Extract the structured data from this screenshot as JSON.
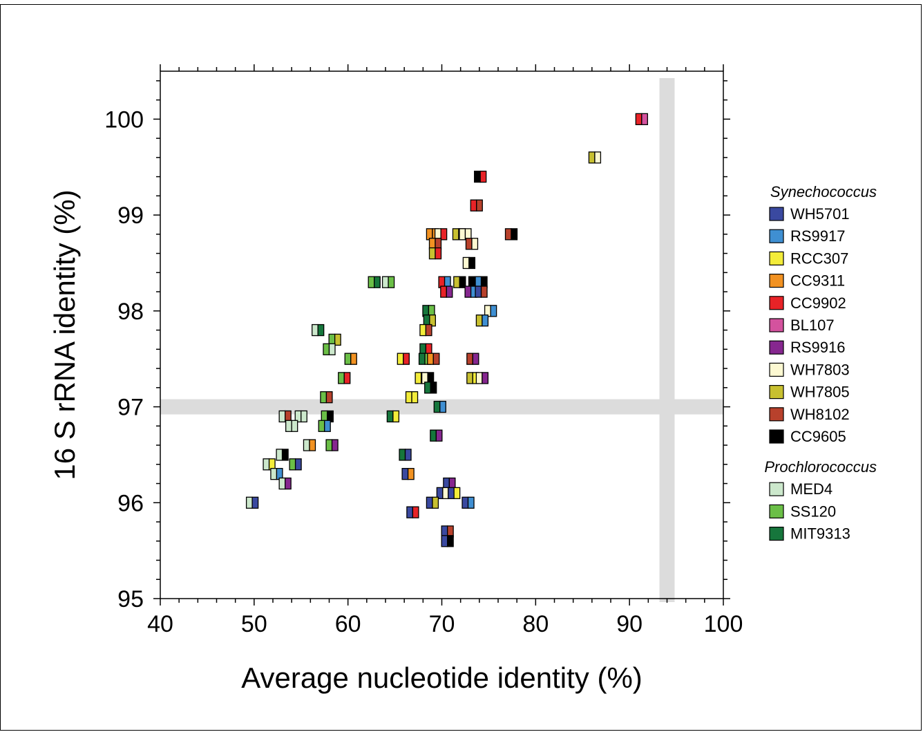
{
  "chart_data": {
    "type": "scatter",
    "xlabel": "Average nucleotide identity (%)",
    "ylabel": "16 S rRNA identity (%)",
    "xlim": [
      40,
      100
    ],
    "ylim": [
      95,
      100.5
    ],
    "xticks": [
      40,
      50,
      60,
      70,
      80,
      90,
      100
    ],
    "yticks": [
      95,
      96,
      97,
      98,
      99,
      100
    ],
    "threshold_bands": {
      "x": 94,
      "y": 97
    },
    "grid": false,
    "legend_placement": "right",
    "legend_groups": [
      {
        "title": "Synechococcus",
        "entries": [
          {
            "key": "WH5701",
            "label": "WH5701",
            "color": "#3a49a0"
          },
          {
            "key": "RS9917",
            "label": "RS9917",
            "color": "#3f8fd2"
          },
          {
            "key": "RCC307",
            "label": "RCC307",
            "color": "#f3ec3a"
          },
          {
            "key": "CC9311",
            "label": "CC9311",
            "color": "#f29222"
          },
          {
            "key": "CC9902",
            "label": "CC9902",
            "color": "#e82327"
          },
          {
            "key": "BL107",
            "label": "BL107",
            "color": "#d4529e"
          },
          {
            "key": "RS9916",
            "label": "RS9916",
            "color": "#86278f"
          },
          {
            "key": "WH7803",
            "label": "WH7803",
            "color": "#fdf9d2"
          },
          {
            "key": "WH7805",
            "label": "WH7805",
            "color": "#c8c030"
          },
          {
            "key": "WH8102",
            "label": "WH8102",
            "color": "#b8412c"
          },
          {
            "key": "CC9605",
            "label": "CC9605",
            "color": "#000000"
          }
        ]
      },
      {
        "title": "Prochlorococcus",
        "entries": [
          {
            "key": "MED4",
            "label": "MED4",
            "color": "#cce8cc"
          },
          {
            "key": "SS120",
            "label": "SS120",
            "color": "#6bbf47"
          },
          {
            "key": "MIT9313",
            "label": "MIT9313",
            "color": "#16763c"
          }
        ]
      }
    ],
    "points": [
      {
        "x": 91.3,
        "y": 100.0,
        "pair": [
          "CC9902",
          "BL107"
        ]
      },
      {
        "x": 86.3,
        "y": 99.6,
        "pair": [
          "WH7805",
          "WH7803"
        ]
      },
      {
        "x": 74.1,
        "y": 99.4,
        "pair": [
          "CC9605",
          "CC9902"
        ]
      },
      {
        "x": 73.7,
        "y": 99.1,
        "pair": [
          "CC9902",
          "WH8102"
        ]
      },
      {
        "x": 77.4,
        "y": 98.8,
        "pair": [
          "WH8102",
          "CC9605"
        ]
      },
      {
        "x": 69.0,
        "y": 98.8,
        "pair": [
          "CC9311",
          "CC9311"
        ]
      },
      {
        "x": 69.9,
        "y": 98.8,
        "pair": [
          "WH7803",
          "CC9902"
        ]
      },
      {
        "x": 71.8,
        "y": 98.8,
        "pair": [
          "WH7805",
          "CC9311"
        ]
      },
      {
        "x": 72.5,
        "y": 98.8,
        "pair": [
          "WH7803",
          "WH7803"
        ]
      },
      {
        "x": 69.3,
        "y": 98.7,
        "pair": [
          "CC9311",
          "WH8102"
        ]
      },
      {
        "x": 73.2,
        "y": 98.7,
        "pair": [
          "WH8102",
          "WH7803"
        ]
      },
      {
        "x": 69.3,
        "y": 98.6,
        "pair": [
          "WH7805",
          "CC9902"
        ]
      },
      {
        "x": 72.9,
        "y": 98.5,
        "pair": [
          "WH7803",
          "CC9605"
        ]
      },
      {
        "x": 62.8,
        "y": 98.3,
        "pair": [
          "SS120",
          "MIT9313"
        ]
      },
      {
        "x": 64.3,
        "y": 98.3,
        "pair": [
          "MED4",
          "SS120"
        ]
      },
      {
        "x": 70.3,
        "y": 98.3,
        "pair": [
          "CC9902",
          "RS9917"
        ]
      },
      {
        "x": 71.9,
        "y": 98.3,
        "pair": [
          "WH7805",
          "CC9605"
        ]
      },
      {
        "x": 73.5,
        "y": 98.3,
        "pair": [
          "CC9605",
          "WH5701"
        ]
      },
      {
        "x": 74.2,
        "y": 98.3,
        "pair": [
          "RS9917",
          "CC9605"
        ]
      },
      {
        "x": 70.5,
        "y": 98.2,
        "pair": [
          "CC9902",
          "RS9916"
        ]
      },
      {
        "x": 73.1,
        "y": 98.2,
        "pair": [
          "RS9916",
          "RS9917"
        ]
      },
      {
        "x": 74.2,
        "y": 98.2,
        "pair": [
          "WH5701",
          "WH8102"
        ]
      },
      {
        "x": 75.2,
        "y": 98.0,
        "pair": [
          "WH7803",
          "RS9917"
        ]
      },
      {
        "x": 68.6,
        "y": 98.0,
        "pair": [
          "MIT9313",
          "SS120"
        ]
      },
      {
        "x": 56.8,
        "y": 97.8,
        "pair": [
          "MED4",
          "MIT9313"
        ]
      },
      {
        "x": 74.3,
        "y": 97.9,
        "pair": [
          "WH7805",
          "RS9917"
        ]
      },
      {
        "x": 68.7,
        "y": 97.9,
        "pair": [
          "MIT9313",
          "WH7805"
        ]
      },
      {
        "x": 68.3,
        "y": 97.8,
        "pair": [
          "RCC307",
          "WH8102"
        ]
      },
      {
        "x": 58.6,
        "y": 97.7,
        "pair": [
          "SS120",
          "WH7805"
        ]
      },
      {
        "x": 58.0,
        "y": 97.6,
        "pair": [
          "SS120",
          "MED4"
        ]
      },
      {
        "x": 68.3,
        "y": 97.6,
        "pair": [
          "MIT9313",
          "CC9902"
        ]
      },
      {
        "x": 60.3,
        "y": 97.5,
        "pair": [
          "SS120",
          "CC9311"
        ]
      },
      {
        "x": 65.9,
        "y": 97.5,
        "pair": [
          "RCC307",
          "CC9902"
        ]
      },
      {
        "x": 68.2,
        "y": 97.5,
        "pair": [
          "MIT9313",
          "SS120"
        ]
      },
      {
        "x": 69.1,
        "y": 97.5,
        "pair": [
          "CC9311",
          "WH8102"
        ]
      },
      {
        "x": 73.3,
        "y": 97.5,
        "pair": [
          "WH8102",
          "RS9916"
        ]
      },
      {
        "x": 59.6,
        "y": 97.3,
        "pair": [
          "SS120",
          "CC9902"
        ]
      },
      {
        "x": 67.8,
        "y": 97.3,
        "pair": [
          "RCC307",
          "WH7803"
        ]
      },
      {
        "x": 68.5,
        "y": 97.3,
        "pair": [
          "WH7803",
          "CC9605"
        ]
      },
      {
        "x": 73.3,
        "y": 97.3,
        "pair": [
          "WH7805",
          "RCC307"
        ]
      },
      {
        "x": 74.3,
        "y": 97.3,
        "pair": [
          "WH7803",
          "RS9916"
        ]
      },
      {
        "x": 68.8,
        "y": 97.2,
        "pair": [
          "MIT9313",
          "CC9605"
        ]
      },
      {
        "x": 57.7,
        "y": 97.1,
        "pair": [
          "SS120",
          "WH8102"
        ]
      },
      {
        "x": 66.8,
        "y": 97.1,
        "pair": [
          "RCC307",
          "RCC307"
        ]
      },
      {
        "x": 69.8,
        "y": 97.0,
        "pair": [
          "MIT9313",
          "RS9917"
        ]
      },
      {
        "x": 53.3,
        "y": 96.9,
        "pair": [
          "MED4",
          "WH8102"
        ]
      },
      {
        "x": 55.0,
        "y": 96.9,
        "pair": [
          "MED4",
          "MED4"
        ]
      },
      {
        "x": 57.8,
        "y": 96.9,
        "pair": [
          "SS120",
          "CC9605"
        ]
      },
      {
        "x": 64.8,
        "y": 96.9,
        "pair": [
          "MIT9313",
          "RCC307"
        ]
      },
      {
        "x": 54.0,
        "y": 96.8,
        "pair": [
          "MED4",
          "MED4"
        ]
      },
      {
        "x": 57.5,
        "y": 96.8,
        "pair": [
          "SS120",
          "RS9917"
        ]
      },
      {
        "x": 69.4,
        "y": 96.7,
        "pair": [
          "MIT9313",
          "RS9916"
        ]
      },
      {
        "x": 55.9,
        "y": 96.6,
        "pair": [
          "MED4",
          "CC9311"
        ]
      },
      {
        "x": 58.3,
        "y": 96.6,
        "pair": [
          "SS120",
          "RS9916"
        ]
      },
      {
        "x": 53.0,
        "y": 96.5,
        "pair": [
          "MED4",
          "CC9605"
        ]
      },
      {
        "x": 66.1,
        "y": 96.5,
        "pair": [
          "MIT9313",
          "WH5701"
        ]
      },
      {
        "x": 54.4,
        "y": 96.4,
        "pair": [
          "SS120",
          "WH5701"
        ]
      },
      {
        "x": 51.6,
        "y": 96.4,
        "pair": [
          "MED4",
          "RCC307"
        ]
      },
      {
        "x": 52.4,
        "y": 96.3,
        "pair": [
          "MED4",
          "RS9917"
        ]
      },
      {
        "x": 66.4,
        "y": 96.3,
        "pair": [
          "WH5701",
          "CC9311"
        ]
      },
      {
        "x": 53.3,
        "y": 96.2,
        "pair": [
          "MED4",
          "RS9916"
        ]
      },
      {
        "x": 70.8,
        "y": 96.2,
        "pair": [
          "WH5701",
          "RS9916"
        ]
      },
      {
        "x": 70.1,
        "y": 96.1,
        "pair": [
          "WH5701",
          "WH7803"
        ]
      },
      {
        "x": 71.3,
        "y": 96.1,
        "pair": [
          "WH5701",
          "RCC307"
        ]
      },
      {
        "x": 49.8,
        "y": 96.0,
        "pair": [
          "MED4",
          "WH5701"
        ]
      },
      {
        "x": 69.0,
        "y": 96.0,
        "pair": [
          "WH5701",
          "WH7805"
        ]
      },
      {
        "x": 72.8,
        "y": 96.0,
        "pair": [
          "WH5701",
          "RS9917"
        ]
      },
      {
        "x": 66.9,
        "y": 95.9,
        "pair": [
          "WH5701",
          "CC9902"
        ]
      },
      {
        "x": 70.6,
        "y": 95.7,
        "pair": [
          "WH5701",
          "WH8102"
        ]
      },
      {
        "x": 70.6,
        "y": 95.6,
        "pair": [
          "WH5701",
          "CC9605"
        ]
      }
    ]
  }
}
